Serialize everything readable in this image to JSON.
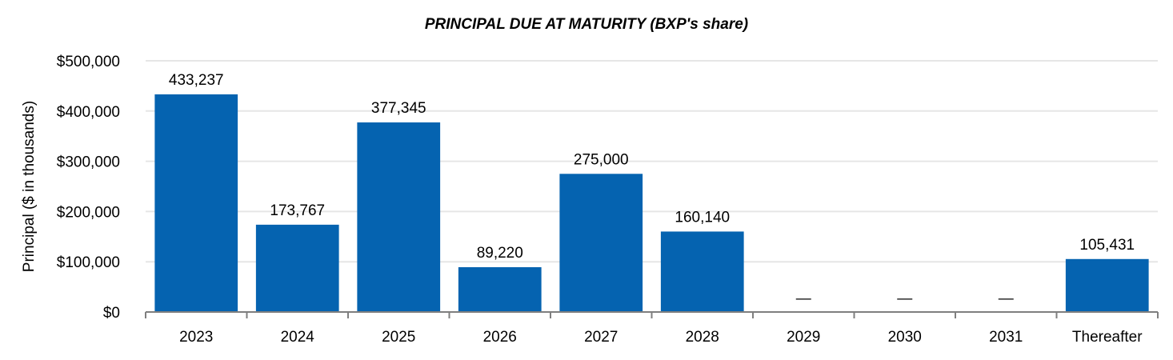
{
  "chart_data": {
    "type": "bar",
    "title": "PRINCIPAL DUE AT MATURITY (BXP's share)",
    "xlabel": "",
    "ylabel": "Principal ($ in thousands)",
    "ylim": [
      0,
      500000
    ],
    "yticks": [
      0,
      100000,
      200000,
      300000,
      400000,
      500000
    ],
    "ytick_labels": [
      "$0",
      "$100,000",
      "$200,000",
      "$300,000",
      "$400,000",
      "$500,000"
    ],
    "categories": [
      "2023",
      "2024",
      "2025",
      "2026",
      "2027",
      "2028",
      "2029",
      "2030",
      "2031",
      "Thereafter"
    ],
    "values": [
      433237,
      173767,
      377345,
      89220,
      275000,
      160140,
      0,
      0,
      0,
      105431
    ],
    "data_labels": [
      "433,237",
      "173,767",
      "377,345",
      "89,220",
      "275,000",
      "160,140",
      "—",
      "—",
      "—",
      "105,431"
    ],
    "bar_color": "#0563b0",
    "grid": true,
    "legend": "none"
  }
}
